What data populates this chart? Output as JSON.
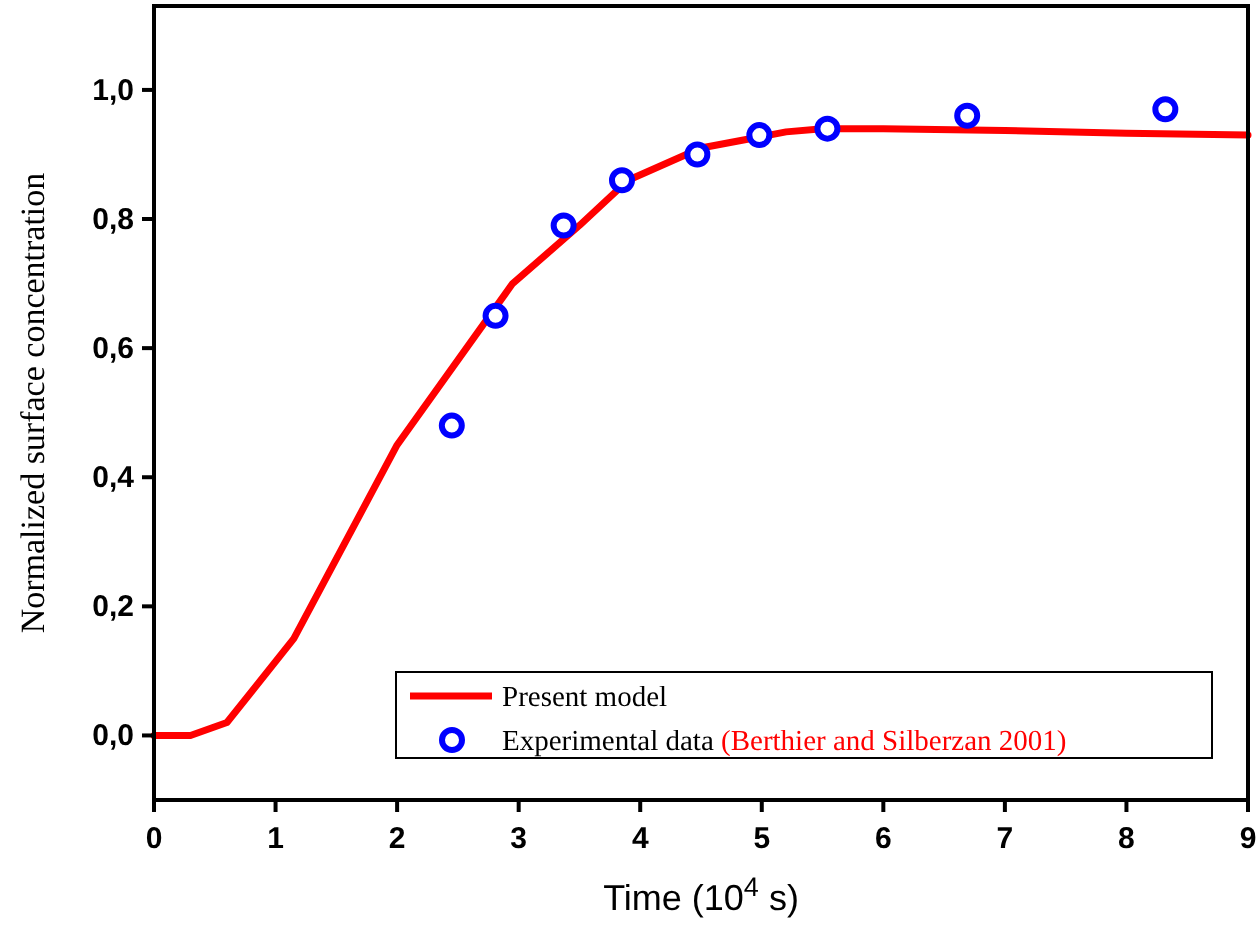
{
  "chart_data": {
    "type": "line",
    "xlabel": "Time (10$^{4}$ s)",
    "ylabel": "Normalized surface concentration",
    "xlim": [
      0,
      9
    ],
    "xticks": [
      0,
      1,
      2,
      3,
      4,
      5,
      6,
      7,
      8,
      9
    ],
    "ylim": [
      -0.1,
      1.13
    ],
    "yticks": [
      {
        "value": 0,
        "label": "0,0"
      },
      {
        "value": 0.2,
        "label": "0,2"
      },
      {
        "value": 0.4,
        "label": "0,4"
      },
      {
        "value": 0.6,
        "label": "0,6"
      },
      {
        "value": 0.8,
        "label": "0,8"
      },
      {
        "value": 1.0,
        "label": "1,0"
      }
    ],
    "series": [
      {
        "name": "Present model",
        "type": "line",
        "color": "#ff0000",
        "marker": "none",
        "line_style": "solid",
        "x": [
          0,
          0.3,
          0.6,
          1.15,
          2.0,
          2.95,
          3.5,
          3.9,
          4.5,
          5.2,
          5.5,
          6.0,
          7.0,
          8.0,
          9.0
        ],
        "values": [
          0,
          0,
          0.02,
          0.15,
          0.45,
          0.7,
          0.79,
          0.86,
          0.91,
          0.935,
          0.94,
          0.94,
          0.937,
          0.933,
          0.93
        ]
      },
      {
        "name": "Experimental data",
        "type": "scatter",
        "color": "#0000ff",
        "marker": "circle",
        "x": [
          2.45,
          2.81,
          3.37,
          3.85,
          4.47,
          4.98,
          5.54,
          6.69,
          8.32
        ],
        "values": [
          0.48,
          0.65,
          0.79,
          0.86,
          0.9,
          0.93,
          0.94,
          0.96,
          0.97
        ]
      }
    ],
    "annotations": [
      "(Berthier and Silberzan 2001)"
    ],
    "legend": "bottom",
    "grid": false
  }
}
